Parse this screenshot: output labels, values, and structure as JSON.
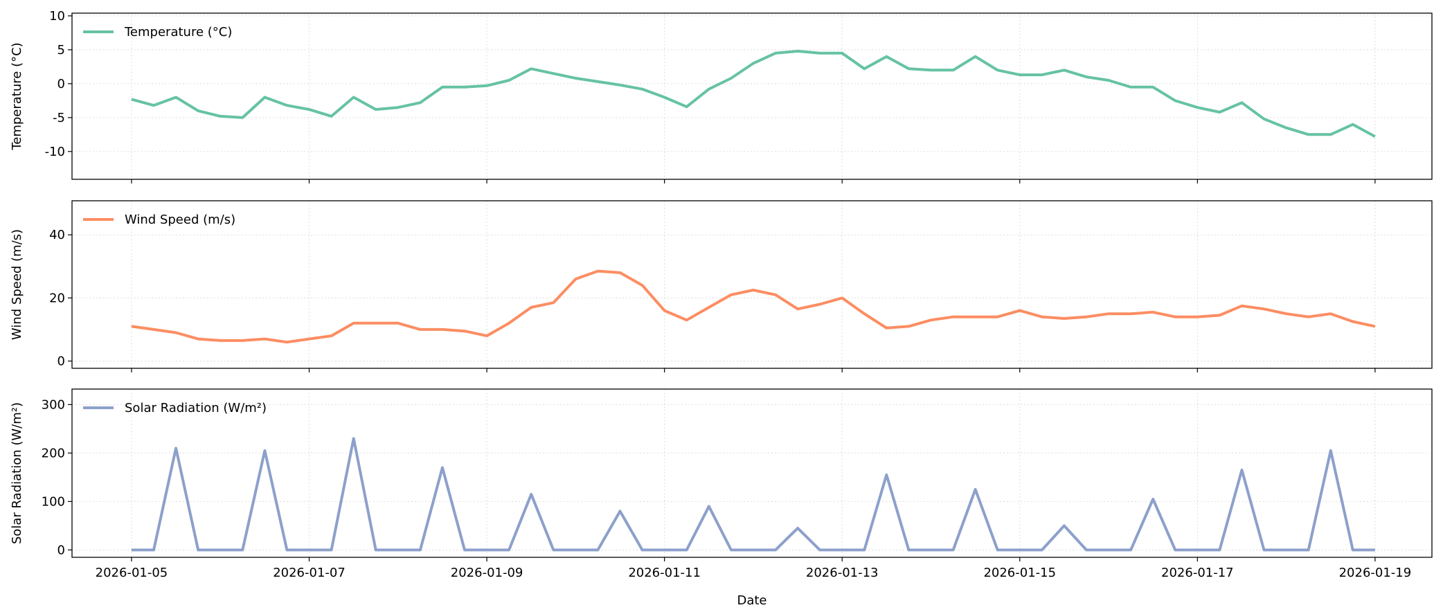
{
  "chart_data": [
    {
      "type": "line",
      "ylabel": "Temperature (°C)",
      "legend": "upper left",
      "grid": true,
      "x": [
        5,
        5.25,
        5.5,
        5.75,
        6,
        6.25,
        6.5,
        6.75,
        7,
        7.25,
        7.5,
        7.75,
        8,
        8.25,
        8.5,
        8.75,
        9,
        9.25,
        9.5,
        9.75,
        10,
        10.25,
        10.5,
        10.75,
        11,
        11.25,
        11.5,
        11.75,
        12,
        12.25,
        12.5,
        12.75,
        13,
        13.25,
        13.5,
        13.75,
        14,
        14.25,
        14.5,
        14.75,
        15,
        15.25,
        15.5,
        15.75,
        16,
        16.25,
        16.5,
        16.75,
        17,
        17.25,
        17.5,
        17.75,
        18,
        18.25,
        18.5,
        18.75,
        19
      ],
      "xlim": [
        4.33,
        19.64
      ],
      "ylim": [
        -14.1,
        10.4
      ],
      "yticks": [
        -10,
        -5,
        0,
        5,
        10
      ],
      "series": [
        {
          "name": "Temperature (°C)",
          "color": "#66c2a5",
          "values": [
            -2.3,
            -3.2,
            -2.0,
            -4.0,
            -4.8,
            -5.0,
            -2.0,
            -3.2,
            -3.8,
            -4.8,
            -2.0,
            -3.8,
            -3.5,
            -2.8,
            -0.5,
            -0.5,
            -0.3,
            0.5,
            2.2,
            1.5,
            0.8,
            0.3,
            -0.2,
            -0.8,
            -2.0,
            -3.4,
            -0.8,
            0.8,
            3.0,
            4.5,
            4.8,
            4.5,
            4.5,
            2.2,
            4.0,
            2.2,
            2.0,
            2.0,
            4.0,
            2.0,
            1.3,
            1.3,
            2.0,
            1.0,
            0.5,
            -0.5,
            -0.5,
            -2.5,
            -3.5,
            -4.2,
            -2.8,
            -5.2,
            -6.5,
            -7.5,
            -7.5,
            -6.0,
            -7.8
          ]
        }
      ]
    },
    {
      "type": "line",
      "ylabel": "Wind Speed (m/s)",
      "legend": "upper left",
      "grid": true,
      "x": [
        5,
        5.25,
        5.5,
        5.75,
        6,
        6.25,
        6.5,
        6.75,
        7,
        7.25,
        7.5,
        7.75,
        8,
        8.25,
        8.5,
        8.75,
        9,
        9.25,
        9.5,
        9.75,
        10,
        10.25,
        10.5,
        10.75,
        11,
        11.25,
        11.5,
        11.75,
        12,
        12.25,
        12.5,
        12.75,
        13,
        13.25,
        13.5,
        13.75,
        14,
        14.25,
        14.5,
        14.75,
        15,
        15.25,
        15.5,
        15.75,
        16,
        16.25,
        16.5,
        16.75,
        17,
        17.25,
        17.5,
        17.75,
        18,
        18.25,
        18.5,
        18.75,
        19
      ],
      "xlim": [
        4.33,
        19.64
      ],
      "ylim": [
        -2.3,
        50.8
      ],
      "yticks": [
        0,
        20,
        40
      ],
      "series": [
        {
          "name": "Wind Speed (m/s)",
          "color": "#fc8d62",
          "values": [
            11,
            10,
            9,
            7,
            6.5,
            6.5,
            7,
            6,
            7,
            8,
            12,
            12,
            12,
            10,
            10,
            9.5,
            8,
            12,
            17,
            18.5,
            26,
            28.5,
            28,
            24,
            16,
            13,
            17,
            21,
            22.5,
            21,
            16.5,
            18,
            20,
            15,
            10.5,
            11,
            13,
            14,
            14,
            14,
            16,
            14,
            13.5,
            14,
            15,
            15,
            15.5,
            14,
            14,
            14.5,
            17.5,
            16.5,
            15,
            14,
            15,
            12.5,
            11
          ]
        }
      ]
    },
    {
      "type": "line",
      "ylabel": "Solar Radiation (W/m²)",
      "xlabel": "Date",
      "legend": "upper left",
      "grid": true,
      "x": [
        5,
        5.25,
        5.5,
        5.75,
        6,
        6.25,
        6.5,
        6.75,
        7,
        7.25,
        7.5,
        7.75,
        8,
        8.25,
        8.5,
        8.75,
        9,
        9.25,
        9.5,
        9.75,
        10,
        10.25,
        10.5,
        10.75,
        11,
        11.25,
        11.5,
        11.75,
        12,
        12.25,
        12.5,
        12.75,
        13,
        13.25,
        13.5,
        13.75,
        14,
        14.25,
        14.5,
        14.75,
        15,
        15.25,
        15.5,
        15.75,
        16,
        16.25,
        16.5,
        16.75,
        17,
        17.25,
        17.5,
        17.75,
        18,
        18.25,
        18.5,
        18.75,
        19
      ],
      "xlim": [
        4.33,
        19.64
      ],
      "ylim": [
        -15.2,
        332
      ],
      "yticks": [
        0,
        100,
        200,
        300
      ],
      "xticks": [
        {
          "value": 5,
          "label": "2026-01-05"
        },
        {
          "value": 7,
          "label": "2026-01-07"
        },
        {
          "value": 9,
          "label": "2026-01-09"
        },
        {
          "value": 11,
          "label": "2026-01-11"
        },
        {
          "value": 13,
          "label": "2026-01-13"
        },
        {
          "value": 15,
          "label": "2026-01-15"
        },
        {
          "value": 17,
          "label": "2026-01-17"
        },
        {
          "value": 19,
          "label": "2026-01-19"
        }
      ],
      "series": [
        {
          "name": "Solar Radiation (W/m²)",
          "color": "#8da0cb",
          "values": [
            0,
            0,
            210,
            0,
            0,
            0,
            205,
            0,
            0,
            0,
            230,
            0,
            0,
            0,
            170,
            0,
            0,
            0,
            115,
            0,
            0,
            0,
            80,
            0,
            0,
            0,
            90,
            0,
            0,
            0,
            45,
            0,
            0,
            0,
            155,
            0,
            0,
            0,
            125,
            0,
            0,
            0,
            50,
            0,
            0,
            0,
            105,
            0,
            0,
            0,
            165,
            0,
            0,
            0,
            205,
            0,
            0
          ]
        }
      ]
    }
  ]
}
